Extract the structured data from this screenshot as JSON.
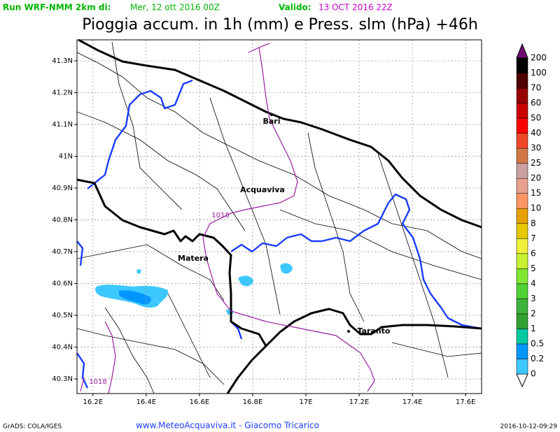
{
  "header": {
    "run_label": "Run WRF-NMM 2km di:",
    "run_date": "Mer, 12 ott 2016 00Z",
    "valid_label": "Valido:",
    "valid_date": "13 OCT 2016 22Z"
  },
  "title": "Pioggia accum. in 1h (mm) e Press. slm (hPa) +46h",
  "map": {
    "xlim": [
      16.14,
      17.66
    ],
    "ylim": [
      40.254,
      41.366
    ],
    "xticks": [
      {
        "value": 16.2,
        "label": "16.2E"
      },
      {
        "value": 16.4,
        "label": "16.4E"
      },
      {
        "value": 16.6,
        "label": "16.6E"
      },
      {
        "value": 16.8,
        "label": "16.8E"
      },
      {
        "value": 17.0,
        "label": "17E"
      },
      {
        "value": 17.2,
        "label": "17.2E"
      },
      {
        "value": 17.4,
        "label": "17.4E"
      },
      {
        "value": 17.6,
        "label": "17.6E"
      }
    ],
    "yticks": [
      {
        "value": 41.3,
        "label": "41.3N"
      },
      {
        "value": 41.2,
        "label": "41.2N"
      },
      {
        "value": 41.1,
        "label": "41.1N"
      },
      {
        "value": 41.0,
        "label": "41N"
      },
      {
        "value": 40.9,
        "label": "40.9N"
      },
      {
        "value": 40.8,
        "label": "40.8N"
      },
      {
        "value": 40.7,
        "label": "40.7N"
      },
      {
        "value": 40.6,
        "label": "40.6N"
      },
      {
        "value": 40.5,
        "label": "40.5N"
      },
      {
        "value": 40.4,
        "label": "40.4N"
      },
      {
        "value": 40.3,
        "label": "40.3N"
      }
    ],
    "places": [
      "Bari",
      "Acquaviva",
      "Matera",
      "Taranto"
    ],
    "isobar_labels": [
      "1018",
      "1018"
    ]
  },
  "colorbar": {
    "levels": [
      0,
      0.2,
      0.5,
      1,
      2,
      3,
      4,
      5,
      6,
      7,
      8,
      10,
      15,
      20,
      25,
      30,
      40,
      50,
      60,
      70,
      100,
      200
    ],
    "colors": [
      "#3cc8ff",
      "#0096ff",
      "#00c8a0",
      "#32a032",
      "#3cb43c",
      "#50d232",
      "#82e632",
      "#c8f032",
      "#f0f03c",
      "#e6c800",
      "#e6a000",
      "#ff9664",
      "#e6a08c",
      "#c8a0a0",
      "#d27846",
      "#f04628",
      "#ff0000",
      "#c80000",
      "#960000",
      "#500000",
      "#000000"
    ],
    "top_color": "#6e0a6e"
  },
  "footer": {
    "left": "GrADS: COLA/IGES",
    "center": "www.MeteoAcquaviva.it - Giacomo Tricarico",
    "right": "2016-10-12-09:29"
  }
}
